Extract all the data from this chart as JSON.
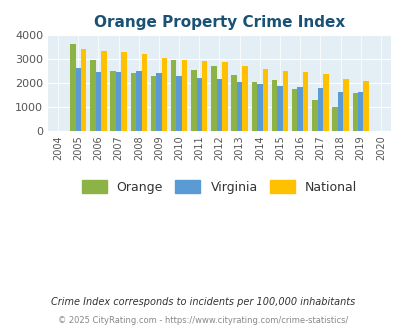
{
  "title": "Orange Property Crime Index",
  "years": [
    2004,
    2005,
    2006,
    2007,
    2008,
    2009,
    2010,
    2011,
    2012,
    2013,
    2014,
    2015,
    2016,
    2017,
    2018,
    2019,
    2020
  ],
  "orange": [
    0,
    3650,
    2970,
    2500,
    2430,
    2300,
    2980,
    2560,
    2700,
    2330,
    2050,
    2120,
    1760,
    1300,
    1000,
    1590,
    0
  ],
  "virginia": [
    0,
    2640,
    2470,
    2480,
    2510,
    2420,
    2310,
    2220,
    2150,
    2060,
    1950,
    1880,
    1850,
    1800,
    1640,
    1630,
    0
  ],
  "national": [
    0,
    3420,
    3360,
    3280,
    3220,
    3040,
    2950,
    2920,
    2870,
    2730,
    2590,
    2490,
    2450,
    2380,
    2170,
    2090,
    0
  ],
  "has_bar": [
    false,
    true,
    true,
    true,
    true,
    true,
    true,
    true,
    true,
    true,
    true,
    true,
    true,
    true,
    true,
    true,
    false
  ],
  "orange_color": "#8db346",
  "virginia_color": "#5b9bd5",
  "national_color": "#ffc000",
  "plot_bg": "#e4eff5",
  "ylim": [
    0,
    4000
  ],
  "yticks": [
    0,
    1000,
    2000,
    3000,
    4000
  ],
  "legend_labels": [
    "Orange",
    "Virginia",
    "National"
  ],
  "footnote1": "Crime Index corresponds to incidents per 100,000 inhabitants",
  "footnote2": "© 2025 CityRating.com - https://www.cityrating.com/crime-statistics/",
  "title_color": "#1a5276",
  "footnote1_color": "#333333",
  "footnote2_color": "#888888"
}
